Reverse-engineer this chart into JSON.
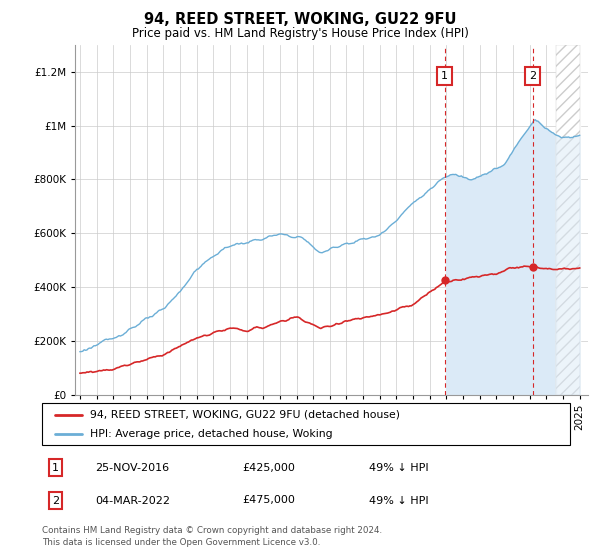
{
  "title": "94, REED STREET, WOKING, GU22 9FU",
  "subtitle": "Price paid vs. HM Land Registry's House Price Index (HPI)",
  "footer": "Contains HM Land Registry data © Crown copyright and database right 2024.\nThis data is licensed under the Open Government Licence v3.0.",
  "legend_house": "94, REED STREET, WOKING, GU22 9FU (detached house)",
  "legend_hpi": "HPI: Average price, detached house, Woking",
  "transaction1_date": "25-NOV-2016",
  "transaction1_price": 425000,
  "transaction1_label": "49% ↓ HPI",
  "transaction2_date": "04-MAR-2022",
  "transaction2_price": 475000,
  "transaction2_label": "49% ↓ HPI",
  "hpi_color": "#6baed6",
  "house_color": "#d62728",
  "shade_color": "#dbeaf7",
  "marker1_x": 2016.9,
  "marker2_x": 2022.17,
  "ylim_max": 1300000,
  "xlim_start": 1994.7,
  "xlim_end": 2025.5
}
